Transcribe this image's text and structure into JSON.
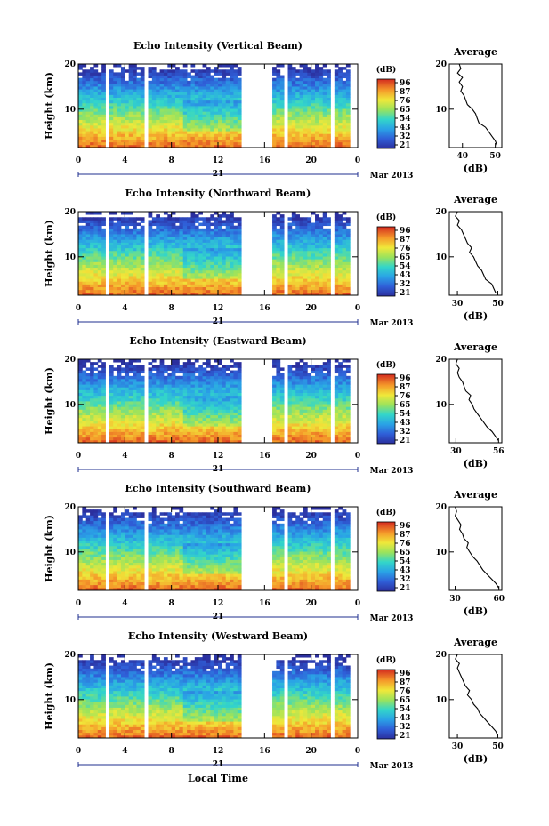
{
  "footer": {
    "xlabel": "Local Time"
  },
  "chart_data": [
    {
      "type": "heatmap",
      "title": "Echo Intensity (Vertical Beam)",
      "ylabel": "Height (km)",
      "x_ticks": [
        "0",
        "4",
        "8",
        "12",
        "16",
        "20",
        "0"
      ],
      "xlim": [
        0,
        24
      ],
      "y_ticks": [
        "20",
        "10"
      ],
      "ylim": [
        1.5,
        20
      ],
      "day_label": "21",
      "month_label": "Mar 2013",
      "colorbar": {
        "unit": "(dB)",
        "ticks": [
          "96",
          "87",
          "76",
          "65",
          "54",
          "43",
          "32",
          "21"
        ]
      },
      "gaps": [
        [
          2.3,
          2.7
        ],
        [
          5.7,
          6.0
        ],
        [
          14.0,
          16.8
        ],
        [
          17.6,
          18.0
        ],
        [
          21.6,
          22.0
        ],
        [
          23.2,
          24.0
        ]
      ],
      "profile": {
        "title": "Average",
        "xlabel": "(dB)",
        "x_ticks": [
          "40",
          "50"
        ],
        "xlim": [
          36,
          52
        ],
        "y_ticks": [
          "20",
          "10"
        ],
        "ylim": [
          1.5,
          20
        ],
        "height": [
          2,
          3,
          4,
          5,
          6,
          7,
          8,
          9,
          10,
          11,
          12,
          13,
          14,
          15,
          16,
          17,
          18,
          19,
          20
        ],
        "values": [
          50.5,
          50,
          49,
          48,
          47,
          45,
          44.5,
          44,
          43,
          41.5,
          41,
          40.5,
          39.5,
          40,
          39,
          40,
          38.5,
          39.5,
          39
        ]
      }
    },
    {
      "type": "heatmap",
      "title": "Echo Intensity (Northward Beam)",
      "ylabel": "Height (km)",
      "x_ticks": [
        "0",
        "4",
        "8",
        "12",
        "16",
        "20",
        "0"
      ],
      "xlim": [
        0,
        24
      ],
      "y_ticks": [
        "20",
        "10"
      ],
      "ylim": [
        1.5,
        20
      ],
      "day_label": "21",
      "month_label": "Mar 2013",
      "colorbar": {
        "unit": "(dB)",
        "ticks": [
          "96",
          "87",
          "76",
          "65",
          "54",
          "43",
          "32",
          "21"
        ]
      },
      "gaps": [
        [
          2.3,
          2.7
        ],
        [
          5.7,
          6.0
        ],
        [
          14.0,
          16.8
        ],
        [
          17.6,
          18.0
        ],
        [
          21.6,
          22.0
        ],
        [
          23.2,
          24.0
        ]
      ],
      "profile": {
        "title": "Average",
        "xlabel": "(dB)",
        "x_ticks": [
          "30",
          "50"
        ],
        "xlim": [
          26,
          52
        ],
        "y_ticks": [
          "20",
          "10"
        ],
        "ylim": [
          1.5,
          20
        ],
        "height": [
          2,
          3,
          4,
          5,
          6,
          7,
          8,
          9,
          10,
          11,
          12,
          13,
          14,
          15,
          16,
          17,
          18,
          19,
          20
        ],
        "values": [
          49,
          48,
          47,
          44,
          43,
          42,
          40,
          39,
          38,
          36,
          37,
          35,
          34,
          33,
          32,
          30,
          31,
          29,
          30
        ]
      }
    },
    {
      "type": "heatmap",
      "title": "Echo Intensity (Eastward Beam)",
      "ylabel": "Height (km)",
      "x_ticks": [
        "0",
        "4",
        "8",
        "12",
        "16",
        "20",
        "0"
      ],
      "xlim": [
        0,
        24
      ],
      "y_ticks": [
        "20",
        "10"
      ],
      "ylim": [
        1.5,
        20
      ],
      "day_label": "21",
      "month_label": "Mar 2013",
      "colorbar": {
        "unit": "(dB)",
        "ticks": [
          "96",
          "87",
          "76",
          "65",
          "54",
          "43",
          "32",
          "21"
        ]
      },
      "gaps": [
        [
          2.3,
          2.7
        ],
        [
          5.7,
          6.0
        ],
        [
          14.0,
          16.8
        ],
        [
          17.6,
          18.0
        ],
        [
          21.6,
          22.0
        ],
        [
          23.2,
          24.0
        ]
      ],
      "profile": {
        "title": "Average",
        "xlabel": "(dB)",
        "x_ticks": [
          "30",
          "56"
        ],
        "xlim": [
          26,
          58
        ],
        "y_ticks": [
          "20",
          "10"
        ],
        "ylim": [
          1.5,
          20
        ],
        "height": [
          2,
          3,
          4,
          5,
          6,
          7,
          8,
          9,
          10,
          11,
          12,
          13,
          14,
          15,
          16,
          17,
          18,
          19,
          20
        ],
        "values": [
          56,
          54,
          52,
          49,
          47,
          45,
          43,
          41,
          40,
          38,
          39,
          36,
          35,
          34,
          32,
          31,
          32,
          30,
          31
        ]
      }
    },
    {
      "type": "heatmap",
      "title": "Echo Intensity (Southward Beam)",
      "ylabel": "Height (km)",
      "x_ticks": [
        "0",
        "4",
        "8",
        "12",
        "16",
        "20",
        "0"
      ],
      "xlim": [
        0,
        24
      ],
      "y_ticks": [
        "20",
        "10"
      ],
      "ylim": [
        1.5,
        20
      ],
      "day_label": "21",
      "month_label": "Mar 2013",
      "colorbar": {
        "unit": "(dB)",
        "ticks": [
          "96",
          "87",
          "76",
          "65",
          "54",
          "43",
          "32",
          "21"
        ]
      },
      "gaps": [
        [
          2.3,
          2.7
        ],
        [
          5.7,
          6.0
        ],
        [
          14.0,
          16.8
        ],
        [
          17.6,
          18.0
        ],
        [
          21.6,
          22.0
        ],
        [
          23.2,
          24.0
        ]
      ],
      "profile": {
        "title": "Average",
        "xlabel": "(dB)",
        "x_ticks": [
          "30",
          "60"
        ],
        "xlim": [
          26,
          62
        ],
        "y_ticks": [
          "20",
          "10"
        ],
        "ylim": [
          1.5,
          20
        ],
        "height": [
          2,
          3,
          4,
          5,
          6,
          7,
          8,
          9,
          10,
          11,
          12,
          13,
          14,
          15,
          16,
          17,
          18,
          19,
          20
        ],
        "values": [
          60,
          58,
          55,
          52,
          49,
          47,
          45,
          42,
          40,
          38,
          39,
          36,
          35,
          33,
          34,
          32,
          30,
          31,
          30
        ]
      }
    },
    {
      "type": "heatmap",
      "title": "Echo Intensity (Westward Beam)",
      "ylabel": "Height (km)",
      "x_ticks": [
        "0",
        "4",
        "8",
        "12",
        "16",
        "20",
        "0"
      ],
      "xlim": [
        0,
        24
      ],
      "y_ticks": [
        "20",
        "10"
      ],
      "ylim": [
        1.5,
        20
      ],
      "day_label": "21",
      "month_label": "Mar 2013",
      "colorbar": {
        "unit": "(dB)",
        "ticks": [
          "96",
          "87",
          "76",
          "65",
          "54",
          "43",
          "32",
          "21"
        ]
      },
      "gaps": [
        [
          2.3,
          2.7
        ],
        [
          5.7,
          6.0
        ],
        [
          14.0,
          16.8
        ],
        [
          17.6,
          18.0
        ],
        [
          21.6,
          22.0
        ],
        [
          23.2,
          24.0
        ]
      ],
      "profile": {
        "title": "Average",
        "xlabel": "(dB)",
        "x_ticks": [
          "30",
          "50"
        ],
        "xlim": [
          26,
          52
        ],
        "y_ticks": [
          "20",
          "10"
        ],
        "ylim": [
          1.5,
          20
        ],
        "height": [
          2,
          3,
          4,
          5,
          6,
          7,
          8,
          9,
          10,
          11,
          12,
          13,
          14,
          15,
          16,
          17,
          18,
          19,
          20
        ],
        "values": [
          50,
          49,
          47,
          45,
          43,
          41,
          40,
          38,
          37,
          35,
          36,
          34,
          33,
          32,
          31,
          30,
          31,
          29,
          30
        ]
      }
    }
  ]
}
